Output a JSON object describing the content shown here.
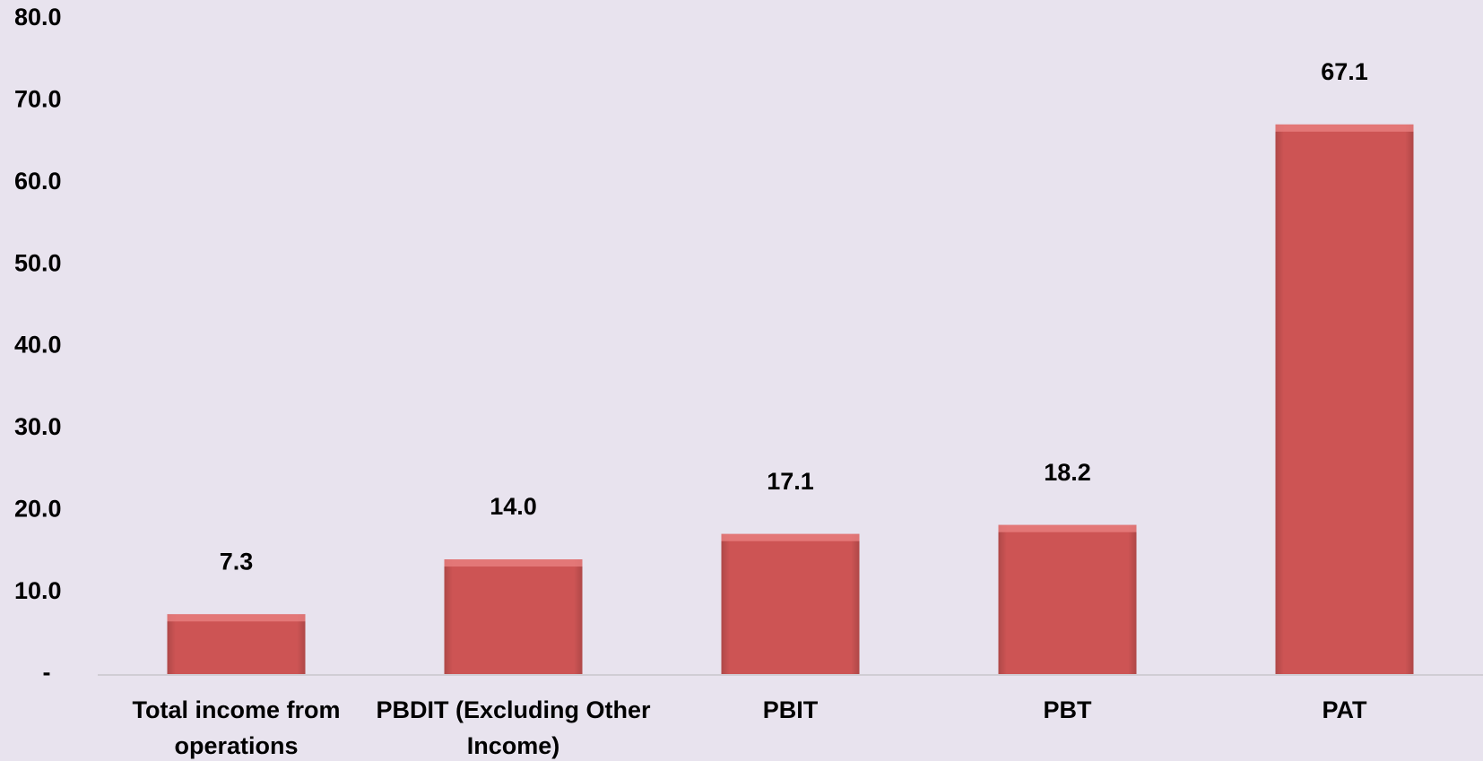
{
  "chart_data": {
    "type": "bar",
    "categories": [
      "Total income from operations",
      "PBDIT (Excluding Other Income)",
      "PBIT",
      "PBT",
      "PAT"
    ],
    "values": [
      7.3,
      14.0,
      17.1,
      18.2,
      67.1
    ],
    "value_labels": [
      "7.3",
      "14.0",
      "17.1",
      "18.2",
      "67.1"
    ],
    "color": "#cd5454",
    "ylim": [
      0,
      80
    ],
    "yticks": [
      {
        "value": 0,
        "label": "-"
      },
      {
        "value": 10,
        "label": "10.0"
      },
      {
        "value": 20,
        "label": "20.0"
      },
      {
        "value": 30,
        "label": "30.0"
      },
      {
        "value": 40,
        "label": "40.0"
      },
      {
        "value": 50,
        "label": "50.0"
      },
      {
        "value": 60,
        "label": "60.0"
      },
      {
        "value": 70,
        "label": "70.0"
      },
      {
        "value": 80,
        "label": "80.0"
      }
    ],
    "grid": false
  }
}
